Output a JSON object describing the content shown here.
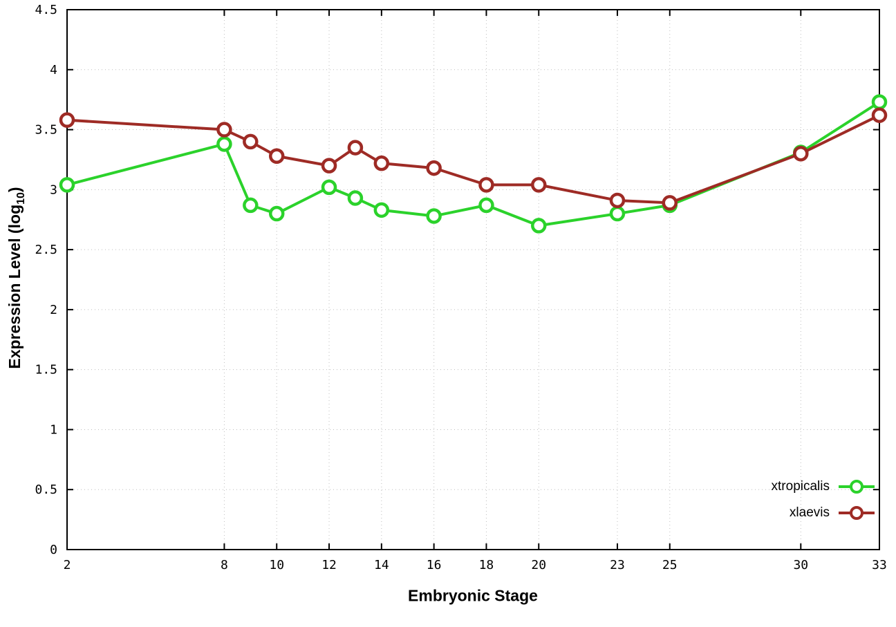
{
  "chart_data": {
    "type": "line",
    "title": "",
    "xlabel": "Embryonic Stage",
    "ylabel": "Expression Level (log10)",
    "ylabel_prefix": "Expression Level (log",
    "ylabel_sub": "10",
    "ylabel_suffix": ")",
    "xlim": [
      2,
      33
    ],
    "ylim": [
      0,
      4.5
    ],
    "x_ticks": [
      2,
      8,
      10,
      12,
      14,
      16,
      18,
      20,
      23,
      25,
      30,
      33
    ],
    "y_ticks": [
      0,
      0.5,
      1,
      1.5,
      2,
      2.5,
      3,
      3.5,
      4,
      4.5
    ],
    "y_tick_labels": [
      "0",
      "0.5",
      "1",
      "1.5",
      "2",
      "2.5",
      "3",
      "3.5",
      "4",
      "4.5"
    ],
    "grid": true,
    "legend_position": "bottom-right",
    "x": [
      2,
      8,
      9,
      10,
      12,
      13,
      14,
      16,
      18,
      20,
      23,
      25,
      30,
      33
    ],
    "series": [
      {
        "name": "xtropicalis",
        "color": "#2bd22b",
        "values": [
          3.04,
          3.38,
          2.87,
          2.8,
          3.02,
          2.93,
          2.83,
          2.78,
          2.87,
          2.7,
          2.8,
          2.87,
          3.31,
          3.73
        ]
      },
      {
        "name": "xlaevis",
        "color": "#9e2b25",
        "values": [
          3.58,
          3.5,
          3.4,
          3.28,
          3.2,
          3.35,
          3.22,
          3.18,
          3.04,
          3.04,
          2.91,
          2.89,
          3.3,
          3.62
        ]
      }
    ],
    "colors": {
      "grid": "#bdbdbd",
      "axis": "#000000",
      "background": "#ffffff"
    }
  }
}
